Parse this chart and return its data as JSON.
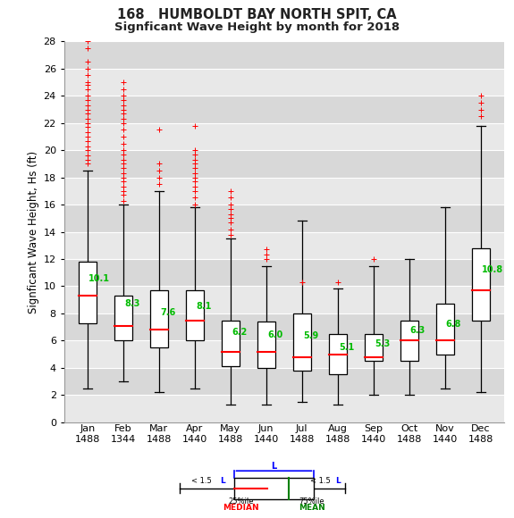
{
  "title1": "168   HUMBOLDT BAY NORTH SPIT, CA",
  "title2": "Signficant Wave Height by month for 2018",
  "ylabel": "Signficant Wave Height, Hs (ft)",
  "months": [
    "Jan",
    "Feb",
    "Mar",
    "Apr",
    "May",
    "Jun",
    "Jul",
    "Aug",
    "Sep",
    "Oct",
    "Nov",
    "Dec"
  ],
  "counts": [
    1488,
    1344,
    1488,
    1440,
    1488,
    1440,
    1488,
    1488,
    1440,
    1488,
    1440,
    1488
  ],
  "box_stats": [
    {
      "q1": 7.3,
      "median": 9.3,
      "q3": 11.8,
      "mean": 10.1,
      "whislo": 2.5,
      "whishi": 18.5,
      "fliers_hi": [
        19.0,
        19.3,
        19.6,
        20.0,
        20.3,
        20.7,
        21.0,
        21.3,
        21.7,
        22.0,
        22.3,
        22.7,
        23.0,
        23.3,
        23.7,
        24.0,
        24.5,
        24.8,
        25.0,
        25.5,
        26.0,
        26.5,
        27.5,
        28.0
      ]
    },
    {
      "q1": 6.0,
      "median": 7.1,
      "q3": 9.3,
      "mean": 8.3,
      "whislo": 3.0,
      "whishi": 16.0,
      "fliers_hi": [
        16.3,
        16.7,
        17.0,
        17.3,
        17.7,
        18.0,
        18.3,
        18.7,
        19.0,
        19.3,
        19.7,
        20.0,
        20.5,
        21.0,
        21.5,
        22.0,
        22.3,
        22.7,
        23.0,
        23.3,
        23.7,
        24.0,
        24.5,
        25.0
      ]
    },
    {
      "q1": 5.5,
      "median": 6.8,
      "q3": 9.7,
      "mean": 7.6,
      "whislo": 2.2,
      "whishi": 17.0,
      "fliers_hi": [
        17.5,
        18.0,
        18.5,
        19.0,
        21.5
      ]
    },
    {
      "q1": 6.0,
      "median": 7.5,
      "q3": 9.7,
      "mean": 8.1,
      "whislo": 2.5,
      "whishi": 15.8,
      "fliers_hi": [
        16.0,
        16.5,
        17.0,
        17.3,
        17.7,
        18.0,
        18.3,
        18.7,
        19.0,
        19.3,
        19.7,
        20.0,
        21.8
      ]
    },
    {
      "q1": 4.1,
      "median": 5.2,
      "q3": 7.5,
      "mean": 6.2,
      "whislo": 1.3,
      "whishi": 13.5,
      "fliers_hi": [
        13.8,
        14.2,
        14.7,
        15.0,
        15.3,
        15.7,
        16.0,
        16.5,
        17.0
      ]
    },
    {
      "q1": 4.0,
      "median": 5.2,
      "q3": 7.4,
      "mean": 6.0,
      "whislo": 1.3,
      "whishi": 11.5,
      "fliers_hi": [
        12.0,
        12.3,
        12.7
      ]
    },
    {
      "q1": 3.8,
      "median": 4.8,
      "q3": 8.0,
      "mean": 5.9,
      "whislo": 1.5,
      "whishi": 14.8,
      "fliers_hi": [
        10.3
      ]
    },
    {
      "q1": 3.5,
      "median": 5.0,
      "q3": 6.5,
      "mean": 5.1,
      "whislo": 1.3,
      "whishi": 9.8,
      "fliers_hi": [
        10.3
      ]
    },
    {
      "q1": 4.5,
      "median": 4.8,
      "q3": 6.5,
      "mean": 5.3,
      "whislo": 2.0,
      "whishi": 11.5,
      "fliers_hi": [
        12.0
      ]
    },
    {
      "q1": 4.5,
      "median": 6.0,
      "q3": 7.5,
      "mean": 6.3,
      "whislo": 2.0,
      "whishi": 12.0,
      "fliers_hi": []
    },
    {
      "q1": 5.0,
      "median": 6.0,
      "q3": 8.7,
      "mean": 6.8,
      "whislo": 2.5,
      "whishi": 15.8,
      "fliers_hi": []
    },
    {
      "q1": 7.5,
      "median": 9.7,
      "q3": 12.8,
      "mean": 10.8,
      "whislo": 2.2,
      "whishi": 21.8,
      "fliers_hi": [
        22.5,
        23.0,
        23.5,
        24.0
      ]
    }
  ],
  "ylim": [
    0,
    28
  ],
  "yticks": [
    0,
    2,
    4,
    6,
    8,
    10,
    12,
    14,
    16,
    18,
    20,
    22,
    24,
    26,
    28
  ],
  "band_colors": [
    "#e8e8e8",
    "#d8d8d8"
  ],
  "grid_color": "#ffffff",
  "fig_bg": "#ffffff",
  "median_color": "#ff0000",
  "mean_color": "#00bb00",
  "flier_color": "#ff0000",
  "box_width": 0.5
}
